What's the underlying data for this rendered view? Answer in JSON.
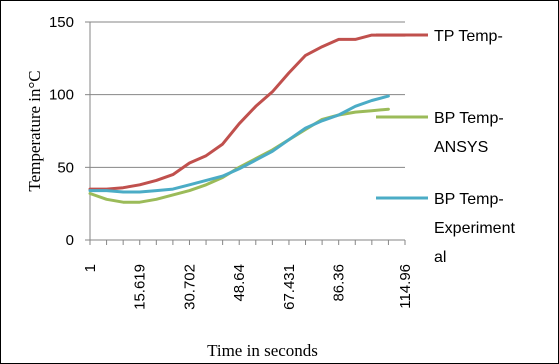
{
  "chart_data": {
    "type": "line",
    "xlabel": "Time in seconds",
    "ylabel": "Temperature in°C",
    "ylim": [
      0,
      150
    ],
    "yticks": [
      "0",
      "50",
      "100",
      "150"
    ],
    "xtick_labels": [
      "1",
      "15.619",
      "30.702",
      "48.64",
      "67.431",
      "86.36",
      "114.96"
    ],
    "grid": "horizontal",
    "legend_position": "right",
    "x": [
      1,
      5,
      10,
      15.619,
      20,
      25,
      30.702,
      35,
      40,
      48.64,
      55,
      60,
      67.431,
      75,
      80,
      86.36,
      95,
      100,
      105,
      114.96
    ],
    "series": [
      {
        "name": "TP Temp-",
        "color": "#c0504d",
        "values": [
          35,
          35,
          36,
          38,
          41,
          45,
          53,
          58,
          66,
          80,
          92,
          102,
          115,
          127,
          133,
          138,
          138,
          141,
          141,
          141
        ]
      },
      {
        "name": "BP Temp-ANSYS",
        "color": "#9bbb59",
        "values": [
          32,
          28,
          26,
          26,
          28,
          31,
          34,
          38,
          43,
          50,
          56,
          62,
          69,
          76,
          83,
          86,
          88,
          89,
          90,
          null
        ]
      },
      {
        "name": "BP Temp-Experimental",
        "color": "#4bacc6",
        "values": [
          34,
          34,
          33,
          33,
          34,
          35,
          38,
          41,
          44,
          49,
          55,
          61,
          69,
          77,
          82,
          86,
          92,
          96,
          99,
          null
        ]
      }
    ],
    "legend_lines": [
      [
        "TP Temp-"
      ],
      [
        "BP Temp-",
        "ANSYS"
      ],
      [
        "BP Temp-",
        "Experiment",
        "al"
      ]
    ]
  }
}
